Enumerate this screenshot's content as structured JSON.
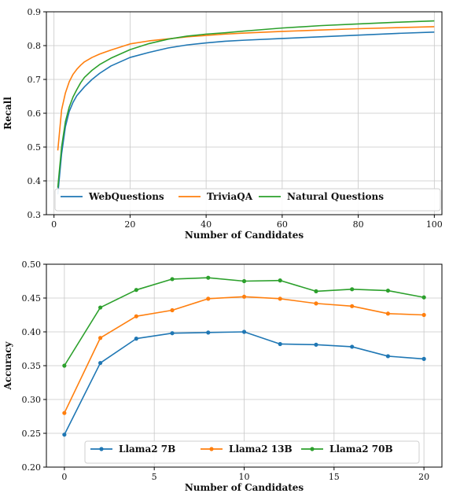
{
  "chart_data": [
    {
      "type": "line",
      "title": "",
      "xlabel": "Number of Candidates",
      "ylabel": "Recall",
      "xlim": [
        -2,
        102
      ],
      "ylim": [
        0.3,
        0.9
      ],
      "xticks": [
        0,
        20,
        40,
        60,
        80,
        100
      ],
      "yticks": [
        0.3,
        0.4,
        0.5,
        0.6,
        0.7,
        0.8,
        0.9
      ],
      "grid": true,
      "legend_position": "bottom",
      "markers": false,
      "x": [
        1,
        2,
        3,
        4,
        5,
        6,
        7,
        8,
        10,
        12,
        15,
        20,
        25,
        30,
        35,
        40,
        45,
        50,
        60,
        70,
        80,
        90,
        100
      ],
      "series": [
        {
          "name": "WebQuestions",
          "color": "#1f77b4",
          "values": [
            0.36,
            0.48,
            0.56,
            0.605,
            0.632,
            0.652,
            0.665,
            0.678,
            0.7,
            0.718,
            0.74,
            0.765,
            0.78,
            0.793,
            0.802,
            0.808,
            0.813,
            0.816,
            0.821,
            0.826,
            0.831,
            0.836,
            0.84
          ]
        },
        {
          "name": "TriviaQA",
          "color": "#ff7f0e",
          "values": [
            0.49,
            0.61,
            0.66,
            0.693,
            0.715,
            0.73,
            0.742,
            0.752,
            0.765,
            0.775,
            0.787,
            0.805,
            0.814,
            0.82,
            0.826,
            0.83,
            0.834,
            0.837,
            0.842,
            0.846,
            0.85,
            0.853,
            0.856
          ]
        },
        {
          "name": "Natural Questions",
          "color": "#2ca02c",
          "values": [
            0.38,
            0.5,
            0.575,
            0.618,
            0.648,
            0.67,
            0.69,
            0.706,
            0.727,
            0.744,
            0.763,
            0.788,
            0.806,
            0.819,
            0.828,
            0.834,
            0.838,
            0.843,
            0.852,
            0.859,
            0.864,
            0.869,
            0.873
          ]
        }
      ]
    },
    {
      "type": "line",
      "title": "",
      "xlabel": "Number of Candidates",
      "ylabel": "Accuracy",
      "xlim": [
        -1,
        21
      ],
      "ylim": [
        0.2,
        0.5
      ],
      "xticks": [
        0,
        5,
        10,
        15,
        20
      ],
      "yticks": [
        0.2,
        0.25,
        0.3,
        0.35,
        0.4,
        0.45,
        0.5
      ],
      "grid": true,
      "legend_position": "bottom",
      "markers": true,
      "x": [
        0,
        2,
        4,
        6,
        8,
        10,
        12,
        14,
        16,
        18,
        20
      ],
      "series": [
        {
          "name": "Llama2 7B",
          "color": "#1f77b4",
          "values": [
            0.248,
            0.354,
            0.39,
            0.398,
            0.399,
            0.4,
            0.382,
            0.381,
            0.378,
            0.364,
            0.36
          ]
        },
        {
          "name": "Llama2 13B",
          "color": "#ff7f0e",
          "values": [
            0.28,
            0.391,
            0.423,
            0.432,
            0.449,
            0.452,
            0.449,
            0.442,
            0.438,
            0.427,
            0.425
          ]
        },
        {
          "name": "Llama2 70B",
          "color": "#2ca02c",
          "values": [
            0.35,
            0.436,
            0.462,
            0.478,
            0.48,
            0.475,
            0.476,
            0.46,
            0.463,
            0.461,
            0.451
          ]
        }
      ]
    }
  ]
}
